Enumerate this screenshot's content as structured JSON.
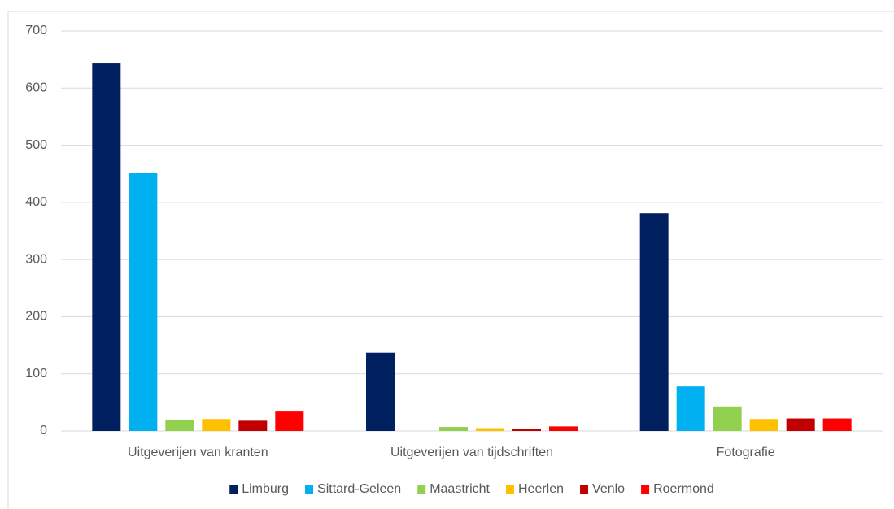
{
  "chart_data": {
    "type": "bar",
    "categories": [
      "Uitgeverijen van kranten",
      "Uitgeverijen van tijdschriften",
      "Fotografie"
    ],
    "series": [
      {
        "name": "Limburg",
        "color": "#002060",
        "values": [
          643,
          137,
          381
        ]
      },
      {
        "name": "Sittard-Geleen",
        "color": "#00b0f0",
        "values": [
          451,
          0,
          78
        ]
      },
      {
        "name": "Maastricht",
        "color": "#92d050",
        "values": [
          20,
          7,
          43
        ]
      },
      {
        "name": "Heerlen",
        "color": "#ffc000",
        "values": [
          21,
          5,
          21
        ]
      },
      {
        "name": "Venlo",
        "color": "#c00000",
        "values": [
          18,
          3,
          22
        ]
      },
      {
        "name": "Roermond",
        "color": "#ff0000",
        "values": [
          34,
          8,
          22
        ]
      }
    ],
    "ylim": [
      0,
      700
    ],
    "yticks": [
      0,
      100,
      200,
      300,
      400,
      500,
      600,
      700
    ],
    "grid": true,
    "legend": "bottom"
  }
}
